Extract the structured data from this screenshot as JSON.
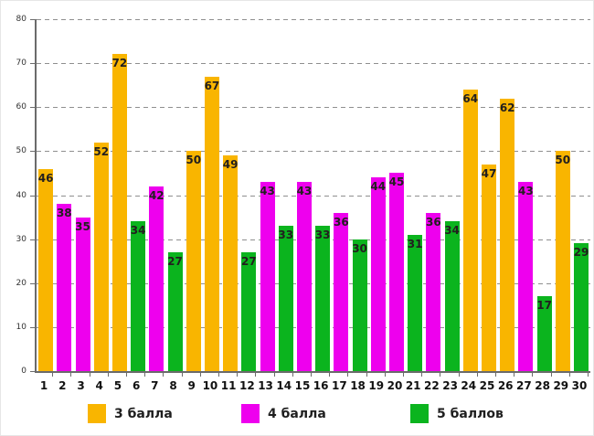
{
  "chart_data": {
    "type": "bar",
    "categories": [
      "1",
      "2",
      "3",
      "4",
      "5",
      "6",
      "7",
      "8",
      "9",
      "10",
      "11",
      "12",
      "13",
      "14",
      "15",
      "16",
      "17",
      "18",
      "19",
      "20",
      "21",
      "22",
      "23",
      "24",
      "25",
      "26",
      "27",
      "28",
      "29",
      "30"
    ],
    "values": [
      46,
      38,
      35,
      52,
      72,
      34,
      42,
      27,
      50,
      67,
      49,
      27,
      43,
      33,
      43,
      33,
      36,
      30,
      44,
      45,
      31,
      36,
      34,
      64,
      47,
      62,
      43,
      17,
      50,
      29
    ],
    "groups": [
      "3",
      "4",
      "4",
      "3",
      "3",
      "5",
      "4",
      "5",
      "3",
      "3",
      "3",
      "5",
      "4",
      "5",
      "4",
      "5",
      "4",
      "5",
      "4",
      "4",
      "5",
      "4",
      "5",
      "3",
      "3",
      "3",
      "4",
      "5",
      "3",
      "5"
    ],
    "legend": [
      {
        "key": "3",
        "label": "3 балла",
        "color": "#F9B500"
      },
      {
        "key": "4",
        "label": "4 балла",
        "color": "#EE00EE"
      },
      {
        "key": "5",
        "label": "5 баллов",
        "color": "#0BB41E"
      }
    ],
    "ylim": [
      0,
      80
    ],
    "yticks": [
      0,
      10,
      20,
      30,
      40,
      50,
      60,
      70,
      80
    ],
    "grid": "horizontal-dashed",
    "legend_position": "bottom",
    "bar_value_labels": "inside-top"
  },
  "colors": {
    "grid": "#8F8F8F",
    "axis": "#6B6B6B",
    "value_label": "#221F1F",
    "background": "#FFFFFF"
  }
}
